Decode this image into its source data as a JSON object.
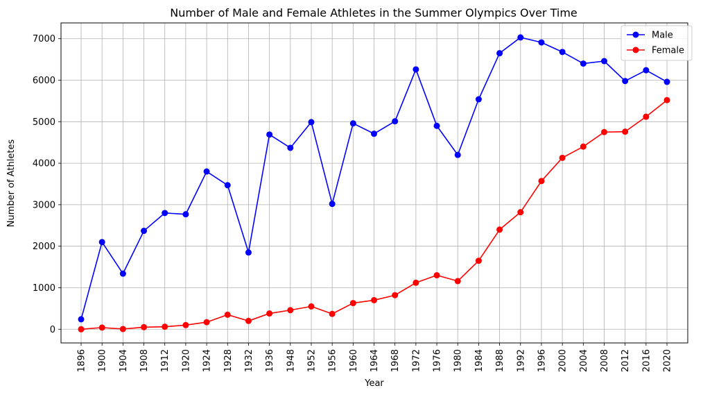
{
  "chart_data": {
    "type": "line",
    "title": "Number of Male and Female Athletes in the Summer Olympics Over Time",
    "xlabel": "Year",
    "ylabel": "Number of Athletes",
    "categories": [
      "1896",
      "1900",
      "1904",
      "1908",
      "1912",
      "1920",
      "1924",
      "1928",
      "1932",
      "1936",
      "1948",
      "1952",
      "1956",
      "1960",
      "1964",
      "1968",
      "1972",
      "1976",
      "1980",
      "1984",
      "1988",
      "1992",
      "1996",
      "2000",
      "2004",
      "2008",
      "2012",
      "2016",
      "2020"
    ],
    "yticks": [
      0,
      1000,
      2000,
      3000,
      4000,
      5000,
      6000,
      7000
    ],
    "ytick_labels": [
      "0",
      "1000",
      "2000",
      "3000",
      "4000",
      "5000",
      "6000",
      "7000"
    ],
    "ylim": [
      -330,
      7380
    ],
    "grid": true,
    "legend_position": "top-right",
    "series": [
      {
        "name": "Male",
        "color": "#0000ff",
        "marker": "circle",
        "values": [
          240,
          2100,
          1340,
          2370,
          2800,
          2770,
          3800,
          3470,
          1850,
          4690,
          4370,
          4990,
          3020,
          4960,
          4710,
          5010,
          6260,
          4900,
          4200,
          5540,
          6650,
          7030,
          6910,
          6680,
          6400,
          6460,
          5980,
          6240,
          5960
        ]
      },
      {
        "name": "Female",
        "color": "#ff0000",
        "marker": "circle",
        "values": [
          0,
          40,
          5,
          50,
          60,
          100,
          170,
          350,
          200,
          380,
          460,
          550,
          370,
          630,
          700,
          820,
          1120,
          1300,
          1160,
          1650,
          2400,
          2820,
          3570,
          4130,
          4400,
          4750,
          4760,
          5120,
          5520
        ]
      }
    ]
  }
}
